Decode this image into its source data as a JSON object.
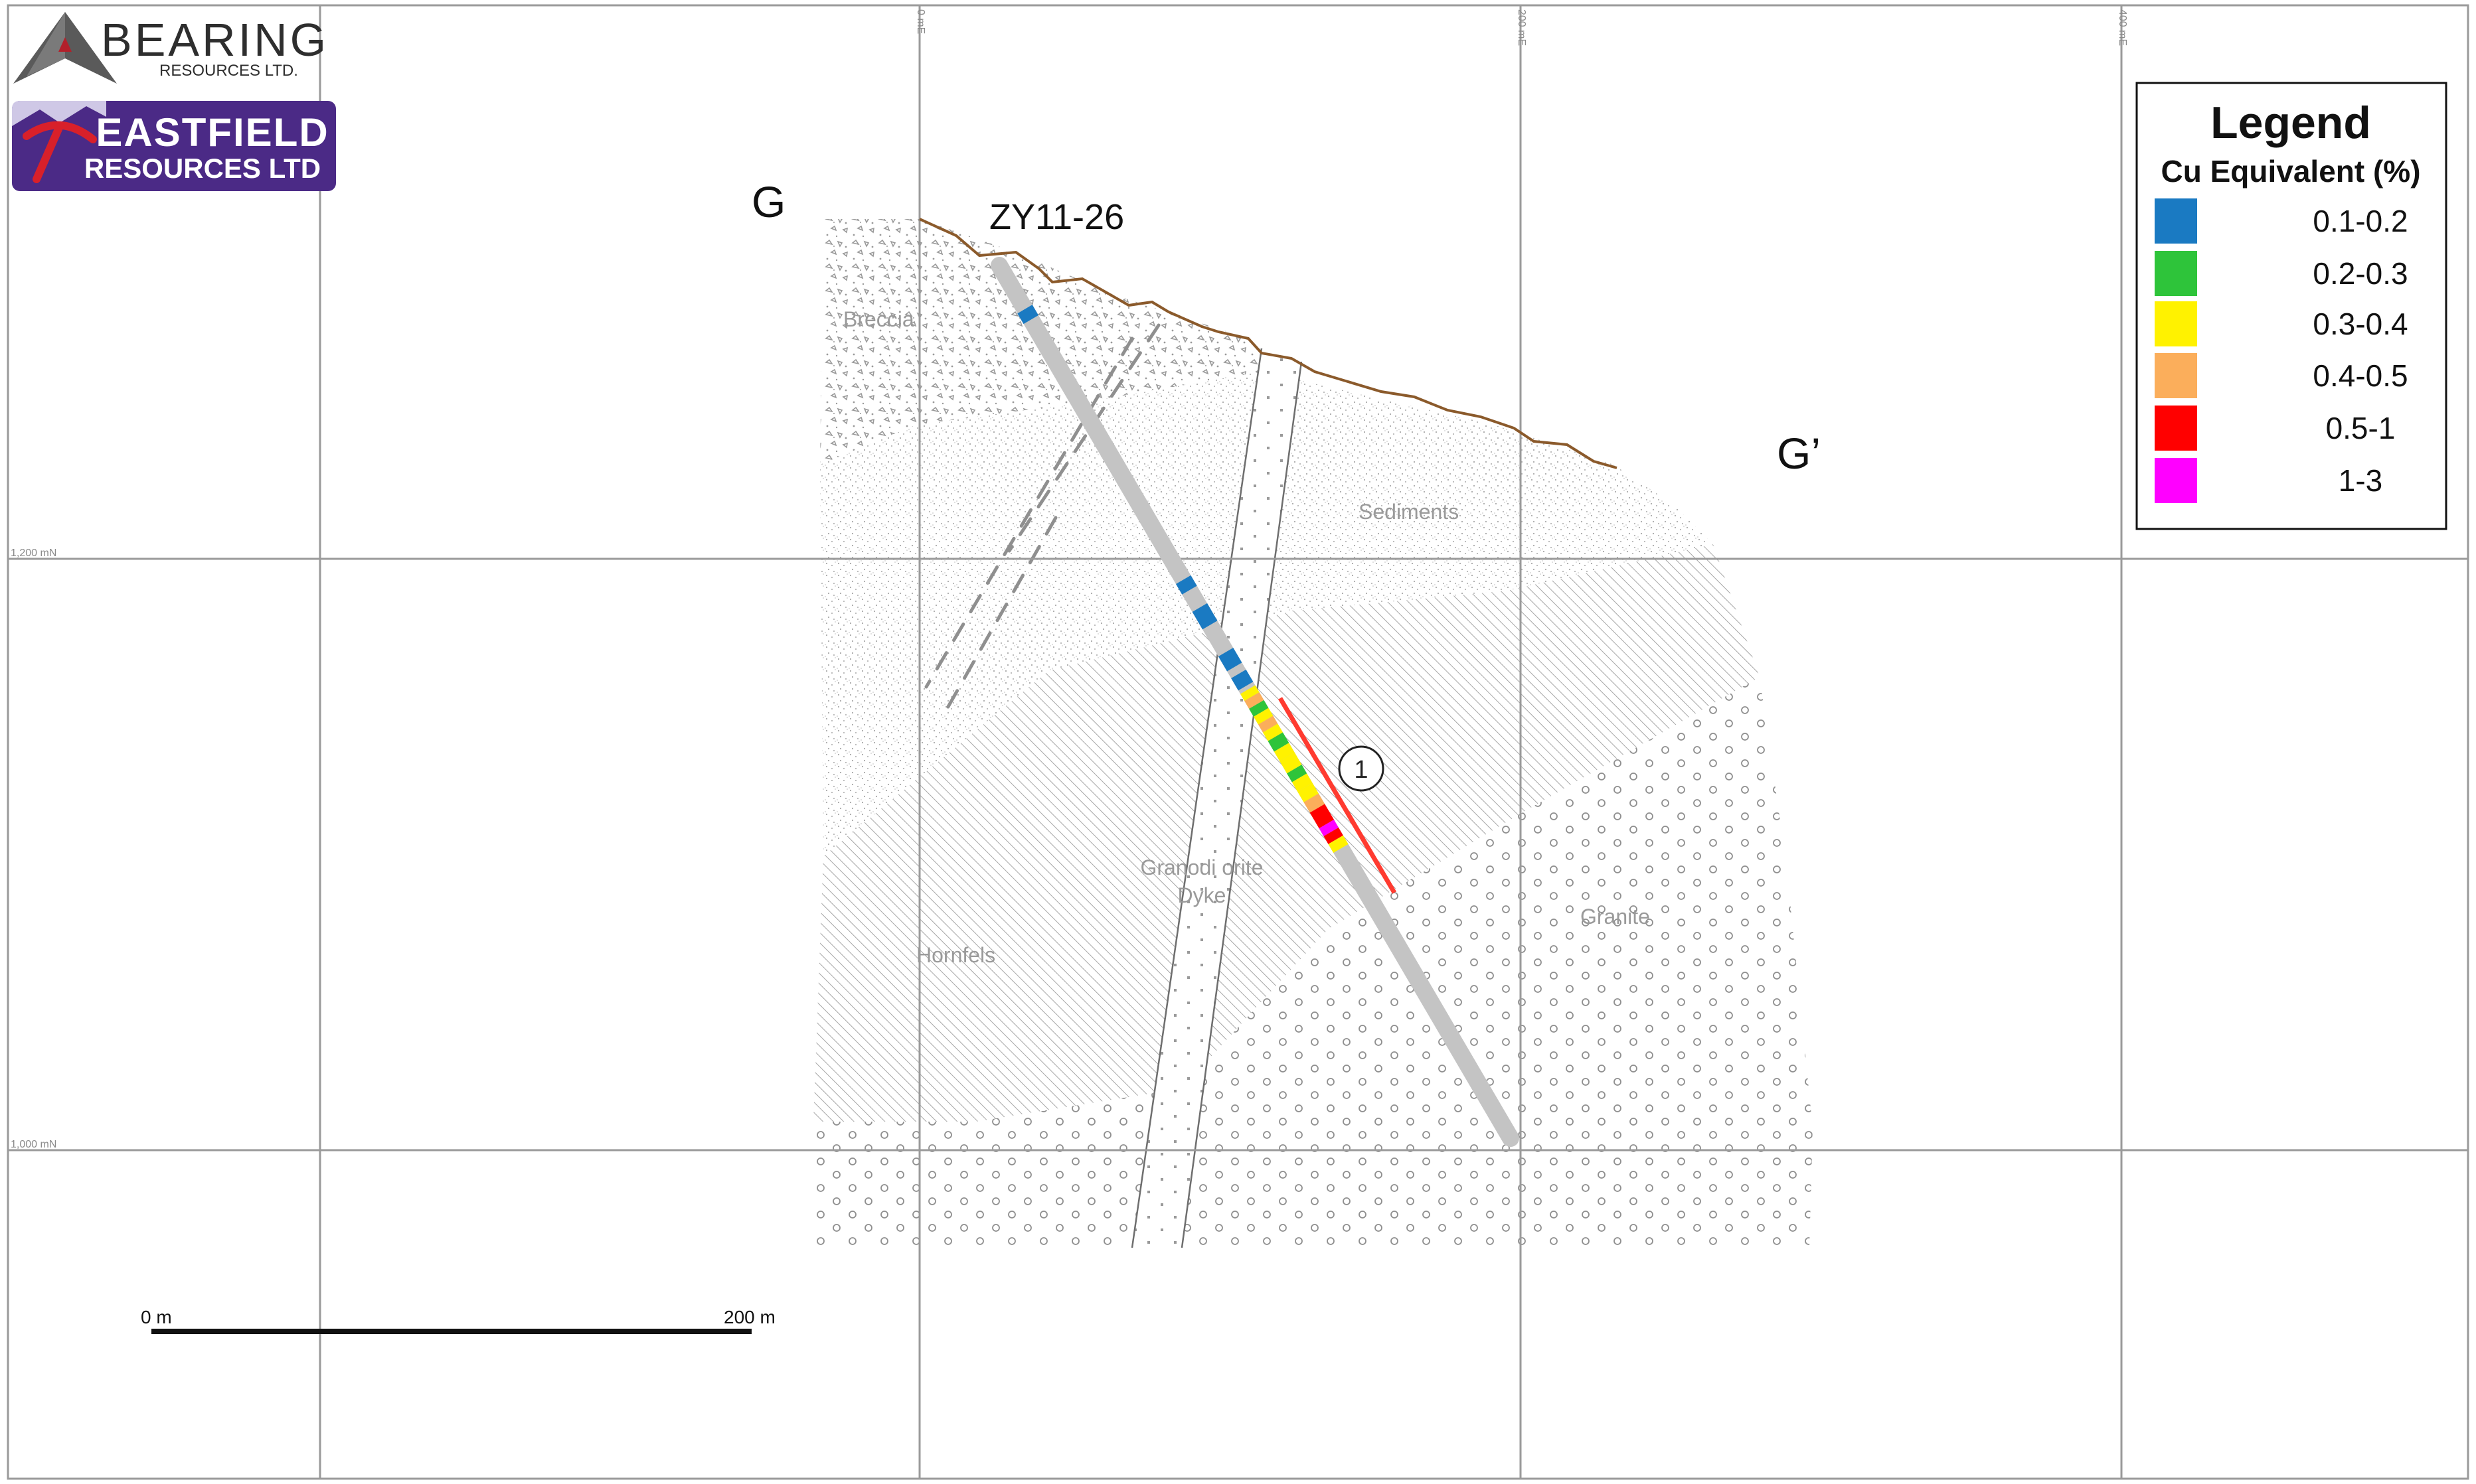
{
  "logos": {
    "bearing": {
      "name": "BEARING",
      "subtitle": "RESOURCES LTD.",
      "mark_color": "#5a5a5a",
      "accent_color": "#b2202a"
    },
    "eastfield": {
      "line1": "EASTFIELD",
      "line2": "RESOURCES LTD",
      "bg_color": "#4b2a86",
      "pick_color": "#d8202a"
    }
  },
  "section": {
    "start_label": "G",
    "end_label": "G’",
    "drillhole_id": "ZY11-26",
    "zone_marker": "1"
  },
  "grid": {
    "easting_labels": [
      "0 mE",
      "200 mE",
      "400 mE"
    ],
    "northing_labels": [
      "1,200 mN",
      "1,000 mN"
    ]
  },
  "rock_units": {
    "breccia": "Breccia",
    "sediments": "Sediments",
    "hornfels": "Hornfels",
    "dyke_line1": "Granodi orite",
    "dyke_line2": "Dyke",
    "granite": "Granite"
  },
  "legend": {
    "title": "Legend",
    "subtitle": "Cu Equivalent (%)",
    "items": [
      {
        "label": "0.1-0.2",
        "color": "#1a7ac2"
      },
      {
        "label": "0.2-0.3",
        "color": "#2ec43a"
      },
      {
        "label": "0.3-0.4",
        "color": "#fff200"
      },
      {
        "label": "0.4-0.5",
        "color": "#fbae5b"
      },
      {
        "label": "0.5-1",
        "color": "#ff0000"
      },
      {
        "label": "1-3",
        "color": "#ff00ff"
      }
    ]
  },
  "scale_bar": {
    "start_label": "0 m",
    "end_label": "200 m"
  },
  "colors": {
    "grid_line": "#9a9a9a",
    "topography": "#8b5a2b",
    "drillhole": "#c4c4c4",
    "mineralized_zone": "#ff3b30",
    "unit_label": "#9a9a9a"
  }
}
